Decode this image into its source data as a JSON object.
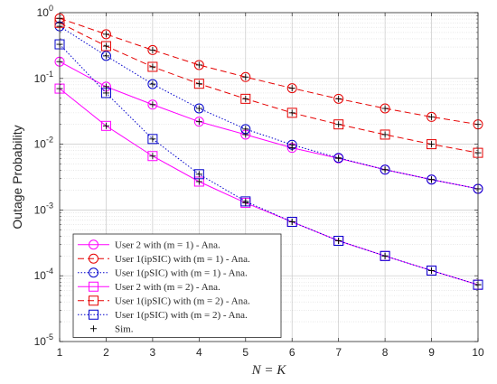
{
  "chart_data": {
    "type": "line",
    "title": "",
    "xlabel": "N = K",
    "ylabel": "Outage Probability",
    "x": [
      1,
      2,
      3,
      4,
      5,
      6,
      7,
      8,
      9,
      10
    ],
    "xlim": [
      1,
      10
    ],
    "ylim": [
      1e-05,
      1
    ],
    "yscale": "log",
    "x_ticks": [
      "1",
      "2",
      "3",
      "4",
      "5",
      "6",
      "7",
      "8",
      "9",
      "10"
    ],
    "y_ticks": [
      {
        "base": "10",
        "exp": "0"
      },
      {
        "base": "10",
        "exp": "-1"
      },
      {
        "base": "10",
        "exp": "-2"
      },
      {
        "base": "10",
        "exp": "-3"
      },
      {
        "base": "10",
        "exp": "-4"
      },
      {
        "base": "10",
        "exp": "-5"
      }
    ],
    "grid": true,
    "legend_position": "bottom-left",
    "series": [
      {
        "name": "User 2 with (m = 1) - Ana.",
        "color": "#ff00ff",
        "line": "solid",
        "marker": "circle",
        "values": [
          0.18,
          0.075,
          0.04,
          0.022,
          0.014,
          0.0088,
          0.0061,
          0.0041,
          0.0029,
          0.0021
        ]
      },
      {
        "name": "User 1(ipSIC) with (m = 1) - Ana.",
        "color": "#e60000",
        "line": "dashed",
        "marker": "circle",
        "values": [
          0.82,
          0.47,
          0.27,
          0.16,
          0.105,
          0.071,
          0.049,
          0.035,
          0.026,
          0.02
        ]
      },
      {
        "name": "User 1(pSIC) with (m = 1) - Ana.",
        "color": "#0000cc",
        "line": "dotted",
        "marker": "circle",
        "values": [
          0.62,
          0.22,
          0.082,
          0.035,
          0.017,
          0.0098,
          0.0062,
          0.0041,
          0.0029,
          0.0021
        ]
      },
      {
        "name": "User 2 with (m = 2) - Ana.",
        "color": "#ff00ff",
        "line": "solid",
        "marker": "square",
        "values": [
          0.07,
          0.019,
          0.0066,
          0.0027,
          0.00128,
          0.00066,
          0.00034,
          0.0002,
          0.00012,
          7.3e-05
        ]
      },
      {
        "name": "User 1(ipSIC) with (m = 2) - Ana.",
        "color": "#e60000",
        "line": "dashed",
        "marker": "square",
        "values": [
          0.7,
          0.31,
          0.15,
          0.083,
          0.049,
          0.03,
          0.02,
          0.014,
          0.01,
          0.0074
        ]
      },
      {
        "name": "User 1(pSIC) with (m = 2) - Ana.",
        "color": "#0000cc",
        "line": "dotted",
        "marker": "square",
        "values": [
          0.33,
          0.06,
          0.012,
          0.0035,
          0.00135,
          0.00066,
          0.00034,
          0.0002,
          0.00012,
          7.3e-05
        ]
      },
      {
        "name": "Sim.",
        "color": "#000000",
        "line": "none",
        "marker": "plus",
        "points_from_series": true
      }
    ]
  }
}
